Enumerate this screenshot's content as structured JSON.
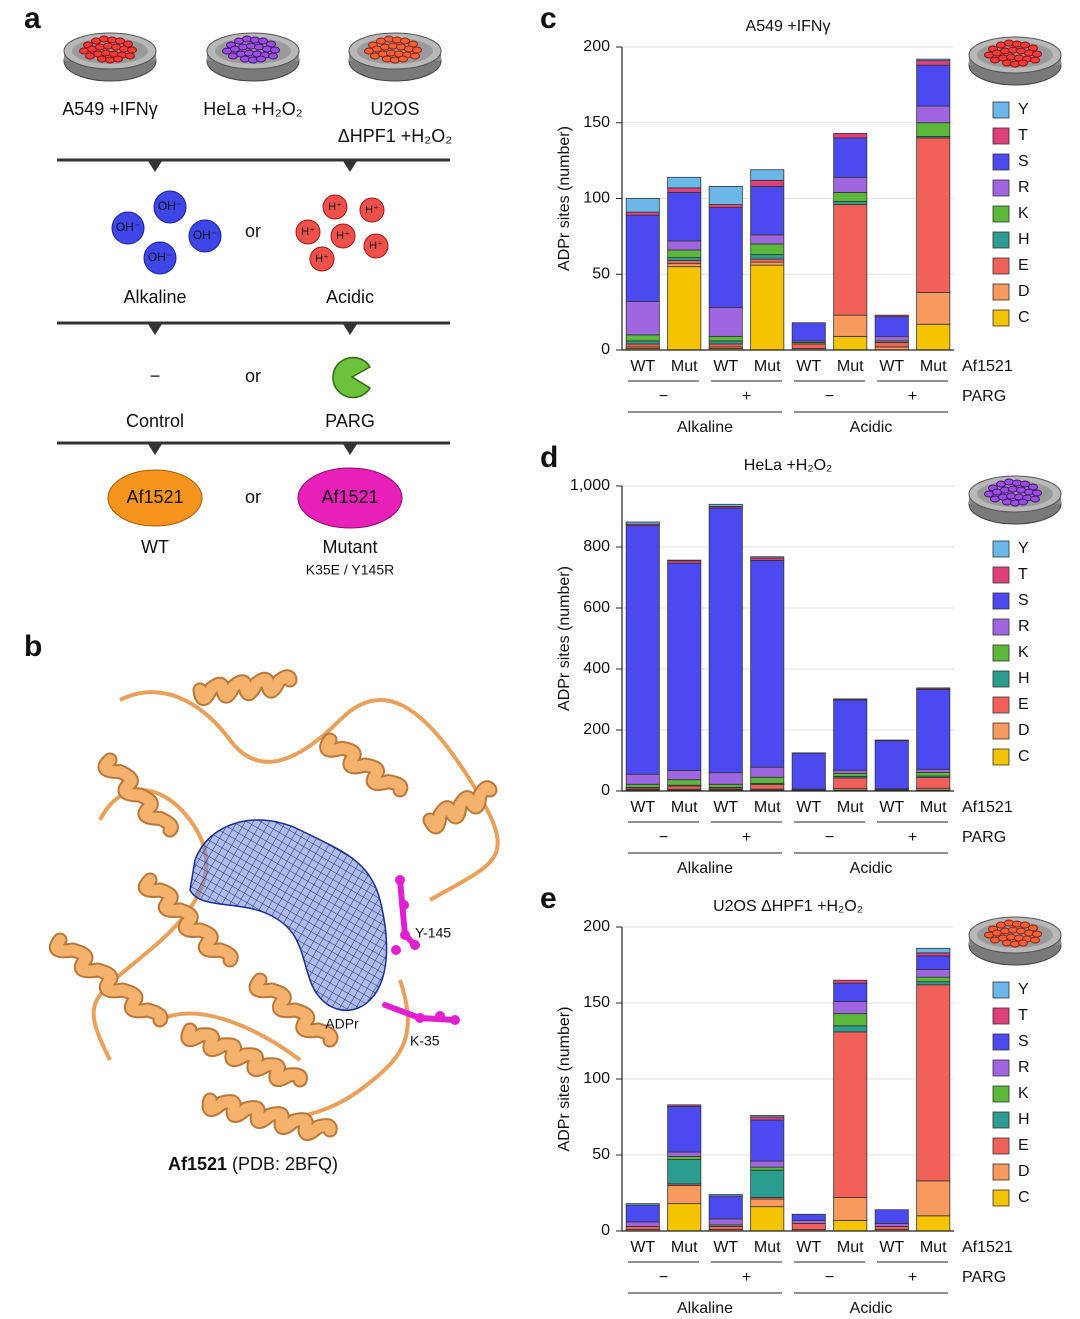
{
  "panel_a": {
    "letter": "a",
    "samples": [
      [
        "A549 +IFNγ"
      ],
      [
        "HeLa +H₂O₂"
      ],
      [
        "U2OS",
        "ΔHPF1 +H₂O₂"
      ]
    ],
    "ions": [
      "OH⁻",
      "H⁺"
    ],
    "or": "or",
    "ph": [
      "Alkaline",
      "Acidic"
    ],
    "treatment_symbol": "−",
    "treatment": [
      "Control",
      "PARG"
    ],
    "reader": "Af1521",
    "reader_types": [
      "WT",
      "Mutant"
    ],
    "mutations": "K35E / Y145R"
  },
  "panel_b": {
    "letter": "b",
    "labels": [
      "Y-145",
      "ADPr",
      "K-35"
    ],
    "caption_bold": "Af1521",
    "caption": "(PDB: 2BFQ)"
  },
  "chart_data": [
    {
      "type": "bar",
      "stacked": true,
      "letter": "c",
      "title": "A549 +IFNγ",
      "ylabel": "ADPr sites (number)",
      "categories": [
        "WT",
        "Mut",
        "WT",
        "Mut",
        "WT",
        "Mut",
        "WT",
        "Mut"
      ],
      "categories_label": "Af1521",
      "parg": [
        "−",
        "+",
        "−",
        "+"
      ],
      "parg_label": "PARG",
      "conditions": [
        "Alkaline",
        "Acidic"
      ],
      "ylim": [
        0,
        200
      ],
      "yticks": [
        0,
        50,
        100,
        150,
        200
      ],
      "grid": true,
      "series": [
        {
          "name": "C",
          "color": "#f5c400",
          "values": [
            1,
            55,
            1,
            56,
            0,
            9,
            0,
            17
          ]
        },
        {
          "name": "D",
          "color": "#f79a5e",
          "values": [
            1,
            2,
            1,
            2,
            1,
            14,
            2,
            21
          ]
        },
        {
          "name": "E",
          "color": "#f2605a",
          "values": [
            2,
            2,
            2,
            2,
            3,
            73,
            3,
            102
          ]
        },
        {
          "name": "H",
          "color": "#2a9d8f",
          "values": [
            2,
            2,
            2,
            3,
            0,
            2,
            0,
            1
          ]
        },
        {
          "name": "K",
          "color": "#5cb83a",
          "values": [
            4,
            5,
            3,
            7,
            1,
            6,
            1,
            9
          ]
        },
        {
          "name": "R",
          "color": "#a066e0",
          "values": [
            22,
            6,
            19,
            6,
            1,
            10,
            3,
            11
          ]
        },
        {
          "name": "S",
          "color": "#4a4aee",
          "values": [
            57,
            32,
            66,
            32,
            12,
            26,
            13,
            27
          ]
        },
        {
          "name": "T",
          "color": "#e0407a",
          "values": [
            2,
            3,
            2,
            4,
            0,
            3,
            1,
            3
          ]
        },
        {
          "name": "Y",
          "color": "#6ab8e8",
          "values": [
            9,
            7,
            12,
            7,
            0,
            0,
            0,
            1
          ]
        }
      ]
    },
    {
      "type": "bar",
      "stacked": true,
      "letter": "d",
      "title": "HeLa +H₂O₂",
      "ylabel": "ADPr sites (number)",
      "categories": [
        "WT",
        "Mut",
        "WT",
        "Mut",
        "WT",
        "Mut",
        "WT",
        "Mut"
      ],
      "categories_label": "Af1521",
      "parg": [
        "−",
        "+",
        "−",
        "+"
      ],
      "parg_label": "PARG",
      "conditions": [
        "Alkaline",
        "Acidic"
      ],
      "ylim": [
        0,
        1000
      ],
      "yticks": [
        0,
        200,
        400,
        600,
        800,
        {
          "value": 1000,
          "label": "1,000"
        }
      ],
      "grid": true,
      "series": [
        {
          "name": "C",
          "color": "#f5c400",
          "values": [
            3,
            3,
            3,
            3,
            0,
            3,
            0,
            3
          ]
        },
        {
          "name": "D",
          "color": "#f79a5e",
          "values": [
            2,
            3,
            2,
            3,
            1,
            5,
            1,
            6
          ]
        },
        {
          "name": "E",
          "color": "#f2605a",
          "values": [
            5,
            10,
            5,
            15,
            3,
            35,
            3,
            35
          ]
        },
        {
          "name": "H",
          "color": "#2a9d8f",
          "values": [
            2,
            3,
            2,
            4,
            0,
            5,
            0,
            5
          ]
        },
        {
          "name": "K",
          "color": "#5cb83a",
          "values": [
            10,
            18,
            10,
            20,
            1,
            10,
            1,
            12
          ]
        },
        {
          "name": "R",
          "color": "#a066e0",
          "values": [
            33,
            30,
            38,
            33,
            1,
            10,
            2,
            10
          ]
        },
        {
          "name": "S",
          "color": "#4a4aee",
          "values": [
            815,
            680,
            868,
            678,
            118,
            230,
            158,
            262
          ]
        },
        {
          "name": "T",
          "color": "#e0407a",
          "values": [
            5,
            8,
            5,
            8,
            1,
            3,
            1,
            4
          ]
        },
        {
          "name": "Y",
          "color": "#6ab8e8",
          "values": [
            7,
            2,
            7,
            4,
            0,
            1,
            1,
            1
          ]
        }
      ]
    },
    {
      "type": "bar",
      "stacked": true,
      "letter": "e",
      "title": "U2OS ΔHPF1 +H₂O₂",
      "ylabel": "ADPr sites (number)",
      "categories": [
        "WT",
        "Mut",
        "WT",
        "Mut",
        "WT",
        "Mut",
        "WT",
        "Mut"
      ],
      "categories_label": "Af1521",
      "parg": [
        "−",
        "+",
        "−",
        "+"
      ],
      "parg_label": "PARG",
      "conditions": [
        "Alkaline",
        "Acidic"
      ],
      "ylim": [
        0,
        200
      ],
      "yticks": [
        0,
        50,
        100,
        150,
        200
      ],
      "grid": true,
      "series": [
        {
          "name": "C",
          "color": "#f5c400",
          "values": [
            0,
            18,
            0,
            16,
            0,
            7,
            0,
            10
          ]
        },
        {
          "name": "D",
          "color": "#f79a5e",
          "values": [
            1,
            12,
            1,
            5,
            1,
            15,
            1,
            23
          ]
        },
        {
          "name": "E",
          "color": "#f2605a",
          "values": [
            2,
            1,
            2,
            1,
            4,
            109,
            2,
            129
          ]
        },
        {
          "name": "H",
          "color": "#2a9d8f",
          "values": [
            0,
            16,
            0,
            18,
            0,
            4,
            0,
            2
          ]
        },
        {
          "name": "K",
          "color": "#5cb83a",
          "values": [
            0,
            2,
            1,
            2,
            0,
            8,
            0,
            3
          ]
        },
        {
          "name": "R",
          "color": "#a066e0",
          "values": [
            3,
            3,
            4,
            4,
            2,
            8,
            2,
            5
          ]
        },
        {
          "name": "S",
          "color": "#4a4aee",
          "values": [
            11,
            30,
            15,
            27,
            4,
            12,
            9,
            9
          ]
        },
        {
          "name": "T",
          "color": "#e0407a",
          "values": [
            0,
            1,
            0,
            2,
            0,
            2,
            0,
            2
          ]
        },
        {
          "name": "Y",
          "color": "#6ab8e8",
          "values": [
            1,
            0,
            1,
            1,
            0,
            0,
            0,
            3
          ]
        }
      ]
    }
  ]
}
